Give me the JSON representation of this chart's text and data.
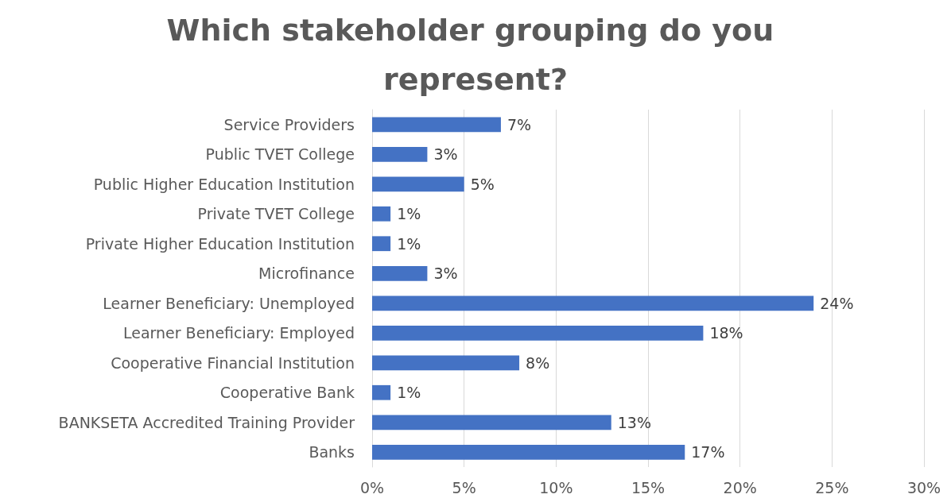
{
  "chart_data": {
    "type": "bar",
    "orientation": "horizontal",
    "title": "Which stakeholder grouping do you represent?",
    "categories": [
      "Service Providers",
      "Public TVET College",
      "Public Higher Education Institution",
      "Private TVET College",
      "Private Higher Education Institution",
      "Microfinance",
      "Learner Beneficiary: Unemployed",
      "Learner Beneficiary: Employed",
      "Cooperative Financial Institution",
      "Cooperative Bank",
      "BANKSETA Accredited Training Provider",
      "Banks"
    ],
    "values": [
      7,
      3,
      5,
      1,
      1,
      3,
      24,
      18,
      8,
      1,
      13,
      17
    ],
    "value_labels": [
      "7%",
      "3%",
      "5%",
      "1%",
      "1%",
      "3%",
      "24%",
      "18%",
      "8%",
      "1%",
      "13%",
      "17%"
    ],
    "color": "#4472c4",
    "xlim": [
      0,
      30
    ],
    "xticks": [
      {
        "value": 0,
        "label": "0%"
      },
      {
        "value": 5,
        "label": "5%"
      },
      {
        "value": 10,
        "label": "10%"
      },
      {
        "value": 15,
        "label": "15%"
      },
      {
        "value": 20,
        "label": "20%"
      },
      {
        "value": 25,
        "label": "25%"
      },
      {
        "value": 30,
        "label": "30%"
      }
    ],
    "grid": "x"
  }
}
